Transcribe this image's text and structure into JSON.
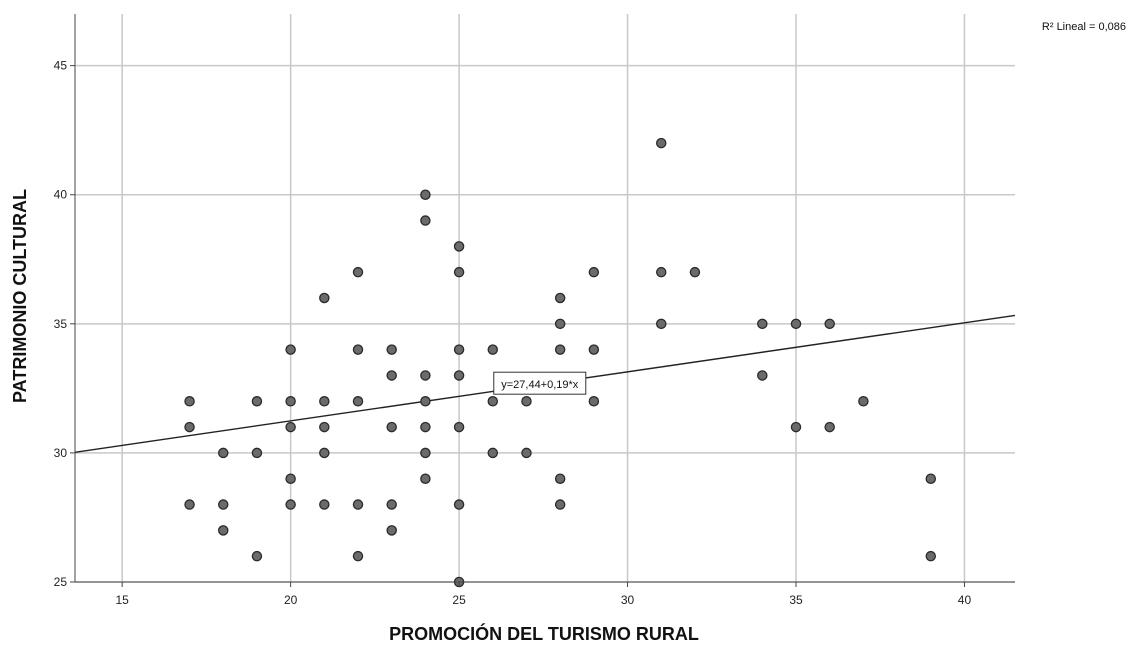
{
  "chart_data": {
    "type": "scatter",
    "title": "",
    "xlabel": "PROMOCIÓN DEL TURISMO RURAL",
    "ylabel": "PATRIMONIO CULTURAL",
    "xlim": [
      13.6,
      41.5
    ],
    "ylim": [
      25,
      47
    ],
    "xticks": [
      15,
      20,
      25,
      30,
      35,
      40
    ],
    "yticks": [
      25,
      30,
      35,
      40,
      45
    ],
    "grid": true,
    "r2_label": "R² Lineal = 0,086",
    "fit_line": {
      "intercept": 27.44,
      "slope": 0.19,
      "label": "y=27,44+0,19*x",
      "label_anchor": [
        26,
        32.7
      ]
    },
    "points": [
      [
        17,
        32
      ],
      [
        17,
        31
      ],
      [
        17,
        28
      ],
      [
        18,
        30
      ],
      [
        18,
        28
      ],
      [
        18,
        27
      ],
      [
        19,
        32
      ],
      [
        19,
        30
      ],
      [
        19,
        26
      ],
      [
        20,
        34
      ],
      [
        20,
        32
      ],
      [
        20,
        31
      ],
      [
        20,
        29
      ],
      [
        20,
        28
      ],
      [
        21,
        36
      ],
      [
        21,
        32
      ],
      [
        21,
        31
      ],
      [
        21,
        30
      ],
      [
        21,
        28
      ],
      [
        22,
        37
      ],
      [
        22,
        34
      ],
      [
        22,
        32
      ],
      [
        22,
        28
      ],
      [
        22,
        26
      ],
      [
        23,
        34
      ],
      [
        23,
        33
      ],
      [
        23,
        31
      ],
      [
        23,
        28
      ],
      [
        23,
        27
      ],
      [
        24,
        40
      ],
      [
        24,
        39
      ],
      [
        24,
        33
      ],
      [
        24,
        32
      ],
      [
        24,
        31
      ],
      [
        24,
        30
      ],
      [
        24,
        29
      ],
      [
        25,
        38
      ],
      [
        25,
        37
      ],
      [
        25,
        34
      ],
      [
        25,
        33
      ],
      [
        25,
        31
      ],
      [
        25,
        28
      ],
      [
        25,
        25
      ],
      [
        26,
        34
      ],
      [
        26,
        32
      ],
      [
        26,
        30
      ],
      [
        27,
        32
      ],
      [
        27,
        30
      ],
      [
        28,
        36
      ],
      [
        28,
        35
      ],
      [
        28,
        34
      ],
      [
        28,
        29
      ],
      [
        28,
        28
      ],
      [
        29,
        37
      ],
      [
        29,
        34
      ],
      [
        29,
        32
      ],
      [
        31,
        42
      ],
      [
        31,
        37
      ],
      [
        31,
        35
      ],
      [
        32,
        37
      ],
      [
        34,
        35
      ],
      [
        34,
        33
      ],
      [
        35,
        35
      ],
      [
        35,
        31
      ],
      [
        36,
        35
      ],
      [
        36,
        31
      ],
      [
        37,
        32
      ],
      [
        39,
        29
      ],
      [
        39,
        26
      ]
    ]
  }
}
